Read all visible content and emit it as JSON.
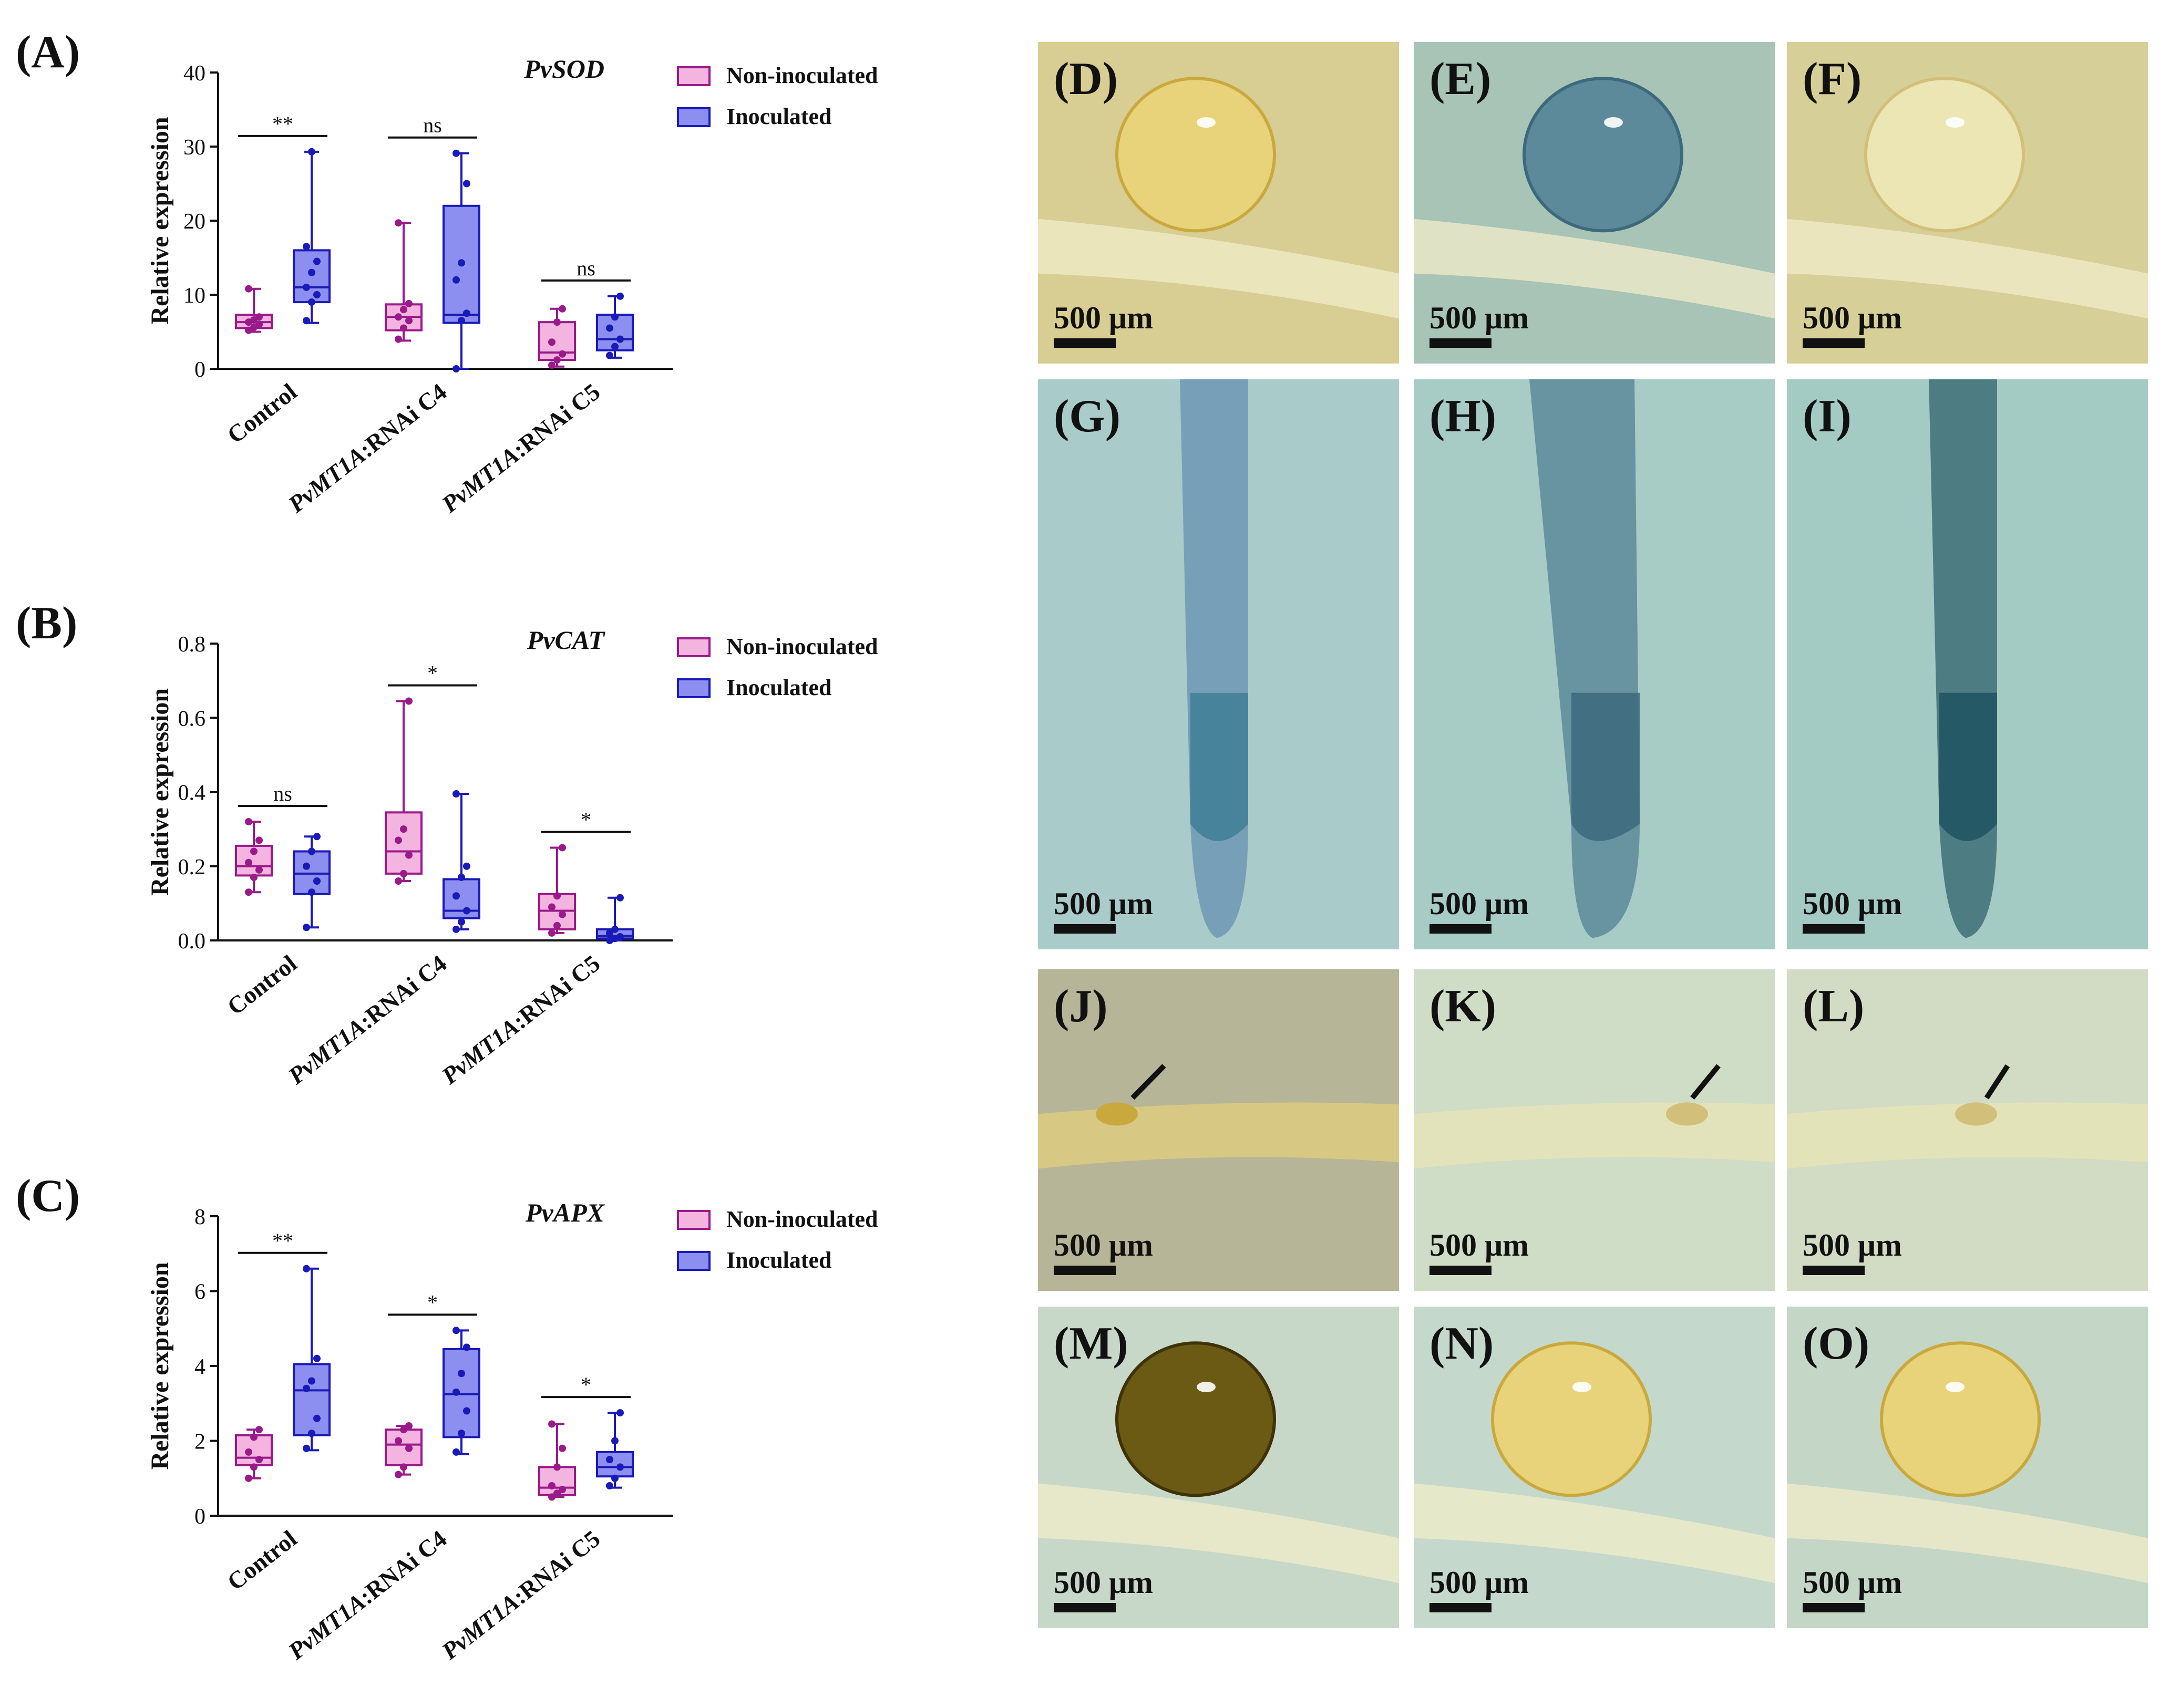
{
  "chart_data": [
    {
      "type": "box",
      "panel": "(A)",
      "title": "PvSOD",
      "ylabel": "Relative expression",
      "ylim": [
        0,
        40
      ],
      "yticks": [
        0,
        10,
        20,
        30,
        40
      ],
      "categories": [
        "Control",
        "PvMT1A:RNAi C4",
        "PvMT1A:RNAi C5"
      ],
      "legend": [
        "Non-inoculated",
        "Inoculated"
      ],
      "series": [
        {
          "name": "Non-inoculated",
          "color": "#9a1a8a",
          "fill": "#f4b4e0",
          "boxes": [
            {
              "min": 5,
              "q1": 5.5,
              "median": 6.3,
              "q3": 7.3,
              "max": 10.8,
              "points": [
                5.2,
                5.6,
                6,
                6.3,
                6.6,
                7,
                10.8
              ]
            },
            {
              "min": 3.8,
              "q1": 5.2,
              "median": 7,
              "q3": 8.7,
              "max": 19.7,
              "points": [
                4,
                5.5,
                6.5,
                7,
                8,
                8.8,
                19.7
              ]
            },
            {
              "min": 0.3,
              "q1": 1.2,
              "median": 2.2,
              "q3": 6.3,
              "max": 8.1,
              "points": [
                0.5,
                1.2,
                2,
                3.6,
                6.3,
                8.1
              ]
            }
          ]
        },
        {
          "name": "Inoculated",
          "color": "#1a1ab8",
          "fill": "#8c8ef0",
          "boxes": [
            {
              "min": 6.2,
              "q1": 9,
              "median": 11,
              "q3": 16,
              "max": 29.3,
              "points": [
                6.5,
                9,
                10,
                11,
                13,
                14.5,
                16.5,
                29.3
              ]
            },
            {
              "min": 0,
              "q1": 6.2,
              "median": 7.3,
              "q3": 22,
              "max": 29.1,
              "points": [
                0,
                6.5,
                7.5,
                12,
                14.3,
                25,
                29.1
              ]
            },
            {
              "min": 1.5,
              "q1": 2.5,
              "median": 4,
              "q3": 7.3,
              "max": 9.8,
              "points": [
                1.8,
                3,
                4,
                5.5,
                7,
                9.8
              ]
            }
          ]
        }
      ],
      "significance": [
        "**",
        "ns",
        "ns"
      ]
    },
    {
      "type": "box",
      "panel": "(B)",
      "title": "PvCAT",
      "ylabel": "Relative expression",
      "ylim": [
        0,
        0.8
      ],
      "yticks": [
        "0.0",
        "0.2",
        "0.4",
        "0.6",
        "0.8"
      ],
      "categories": [
        "Control",
        "PvMT1A:RNAi C4",
        "PvMT1A:RNAi C5"
      ],
      "legend": [
        "Non-inoculated",
        "Inoculated"
      ],
      "series": [
        {
          "name": "Non-inoculated",
          "color": "#9a1a8a",
          "fill": "#f4b4e0",
          "boxes": [
            {
              "min": 0.13,
              "q1": 0.175,
              "median": 0.2,
              "q3": 0.255,
              "max": 0.32,
              "points": [
                0.13,
                0.17,
                0.19,
                0.21,
                0.24,
                0.27,
                0.32
              ]
            },
            {
              "min": 0.16,
              "q1": 0.18,
              "median": 0.24,
              "q3": 0.345,
              "max": 0.645,
              "points": [
                0.16,
                0.18,
                0.23,
                0.27,
                0.3,
                0.645
              ]
            },
            {
              "min": 0.02,
              "q1": 0.03,
              "median": 0.08,
              "q3": 0.125,
              "max": 0.25,
              "points": [
                0.02,
                0.04,
                0.07,
                0.09,
                0.12,
                0.25
              ]
            }
          ]
        },
        {
          "name": "Inoculated",
          "color": "#1a1ab8",
          "fill": "#8c8ef0",
          "boxes": [
            {
              "min": 0.035,
              "q1": 0.125,
              "median": 0.18,
              "q3": 0.24,
              "max": 0.28,
              "points": [
                0.035,
                0.13,
                0.16,
                0.2,
                0.24,
                0.28
              ]
            },
            {
              "min": 0.03,
              "q1": 0.06,
              "median": 0.08,
              "q3": 0.165,
              "max": 0.395,
              "points": [
                0.03,
                0.05,
                0.08,
                0.12,
                0.17,
                0.2,
                0.395
              ]
            },
            {
              "min": 0.0,
              "q1": 0.005,
              "median": 0.012,
              "q3": 0.03,
              "max": 0.115,
              "points": [
                0.0,
                0.005,
                0.01,
                0.02,
                0.03,
                0.115
              ]
            }
          ]
        }
      ],
      "significance": [
        "ns",
        "*",
        "*"
      ]
    },
    {
      "type": "box",
      "panel": "(C)",
      "title": "PvAPX",
      "ylabel": "Relative expression",
      "ylim": [
        0,
        8
      ],
      "yticks": [
        0,
        2,
        4,
        6,
        8
      ],
      "categories": [
        "Control",
        "PvMT1A:RNAi C4",
        "PvMT1A:RNAi C5"
      ],
      "legend": [
        "Non-inoculated",
        "Inoculated"
      ],
      "series": [
        {
          "name": "Non-inoculated",
          "color": "#9a1a8a",
          "fill": "#f4b4e0",
          "boxes": [
            {
              "min": 1.0,
              "q1": 1.35,
              "median": 1.55,
              "q3": 2.15,
              "max": 2.3,
              "points": [
                1.0,
                1.3,
                1.5,
                1.7,
                2.1,
                2.3
              ]
            },
            {
              "min": 1.1,
              "q1": 1.35,
              "median": 1.9,
              "q3": 2.3,
              "max": 2.4,
              "points": [
                1.1,
                1.3,
                1.8,
                2.0,
                2.3,
                2.4
              ]
            },
            {
              "min": 0.5,
              "q1": 0.55,
              "median": 0.75,
              "q3": 1.3,
              "max": 2.45,
              "points": [
                0.5,
                0.6,
                0.7,
                0.8,
                1.3,
                1.8,
                2.45
              ]
            }
          ]
        },
        {
          "name": "Inoculated",
          "color": "#1a1ab8",
          "fill": "#8c8ef0",
          "boxes": [
            {
              "min": 1.75,
              "q1": 2.15,
              "median": 3.35,
              "q3": 4.05,
              "max": 6.6,
              "points": [
                1.8,
                2.2,
                2.6,
                3.4,
                3.6,
                4.2,
                6.6
              ]
            },
            {
              "min": 1.65,
              "q1": 2.1,
              "median": 3.25,
              "q3": 4.45,
              "max": 4.95,
              "points": [
                1.7,
                2.2,
                2.8,
                3.3,
                3.8,
                4.5,
                4.95
              ]
            },
            {
              "min": 0.75,
              "q1": 1.05,
              "median": 1.3,
              "q3": 1.7,
              "max": 2.75,
              "points": [
                0.8,
                1.0,
                1.3,
                1.5,
                2.0,
                2.75
              ]
            }
          ]
        }
      ],
      "significance": [
        "**",
        "*",
        "*"
      ]
    }
  ],
  "photos": [
    {
      "label": "(D)",
      "scale": "500 μm",
      "bg": "#d8cd92",
      "subject": "nodule",
      "tone": "yellow"
    },
    {
      "label": "(E)",
      "scale": "500 μm",
      "bg": "#a8c4b6",
      "subject": "nodule",
      "tone": "blue"
    },
    {
      "label": "(F)",
      "scale": "500 μm",
      "bg": "#d6cf98",
      "subject": "nodule",
      "tone": "pale"
    },
    {
      "label": "(G)",
      "scale": "500 μm",
      "bg": "#a9cbc9",
      "subject": "root-tip",
      "tone": "light-blue"
    },
    {
      "label": "(H)",
      "scale": "500 μm",
      "bg": "#a7cbc5",
      "subject": "root-tip",
      "tone": "blue"
    },
    {
      "label": "(I)",
      "scale": "500 μm",
      "bg": "#a4cac4",
      "subject": "root-tip",
      "tone": "dark-blue"
    },
    {
      "label": "(J)",
      "scale": "500 μm",
      "bg": "#b7b598",
      "subject": "primordia",
      "tone": "yellow"
    },
    {
      "label": "(K)",
      "scale": "500 μm",
      "bg": "#cfdcc6",
      "subject": "primordia",
      "tone": "pale"
    },
    {
      "label": "(L)",
      "scale": "500 μm",
      "bg": "#d2dcc4",
      "subject": "primordia",
      "tone": "pale"
    },
    {
      "label": "(M)",
      "scale": "500 μm",
      "bg": "#c7d8c8",
      "subject": "nodule",
      "tone": "olive"
    },
    {
      "label": "(N)",
      "scale": "500 μm",
      "bg": "#c4d9cb",
      "subject": "nodule",
      "tone": "yellow"
    },
    {
      "label": "(O)",
      "scale": "500 μm",
      "bg": "#c4d6c6",
      "subject": "nodule",
      "tone": "yellow"
    }
  ]
}
